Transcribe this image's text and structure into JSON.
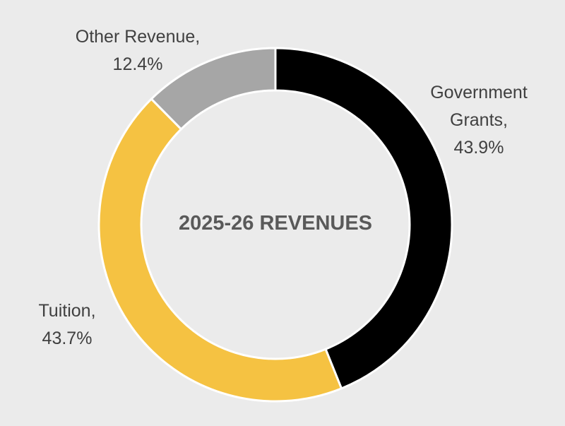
{
  "chart_data": {
    "type": "donut",
    "title": "2025-26 REVENUES",
    "categories": [
      "Government Grants,",
      "Tuition,",
      "Other Revenue,"
    ],
    "values": [
      43.9,
      43.7,
      12.4
    ],
    "value_labels": [
      "43.9%",
      "43.7%",
      "12.4%"
    ],
    "colors": [
      "#000000",
      "#f5c242",
      "#a6a6a6"
    ]
  }
}
